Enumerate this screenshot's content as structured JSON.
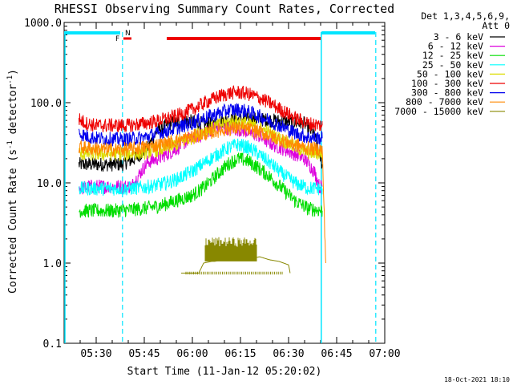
{
  "chart_data": {
    "type": "line",
    "title": "RHESSI Observing Summary Count Rates, Corrected",
    "xlabel": "Start Time (11-Jan-12 05:20:02)",
    "ylabel_main": "Corrected Count Rate (s",
    "ylabel_sup1": "-1",
    "ylabel_mid": " detector",
    "ylabel_sup2": "-1",
    "ylabel_end": ")",
    "yscale": "log",
    "ylim": [
      0.1,
      1000
    ],
    "xlim_min": [
      20,
      120
    ],
    "x_ticks": [
      {
        "min": 30,
        "label": "05:30"
      },
      {
        "min": 45,
        "label": "05:45"
      },
      {
        "min": 60,
        "label": "06:00"
      },
      {
        "min": 75,
        "label": "06:15"
      },
      {
        "min": 90,
        "label": "06:30"
      },
      {
        "min": 105,
        "label": "06:45"
      },
      {
        "min": 120,
        "label": "07:00"
      }
    ],
    "y_ticks": [
      {
        "value": 1000,
        "label": "1000.0"
      },
      {
        "value": 100,
        "label": "100.0"
      },
      {
        "value": 10,
        "label": "10.0"
      },
      {
        "value": 1,
        "label": "1.0"
      },
      {
        "value": 0.1,
        "label": "0.1"
      }
    ],
    "legend_header": [
      "Det 1,3,4,5,6,9,",
      "Att 0"
    ],
    "series": [
      {
        "name": "3 - 6 keV",
        "color": "#000000",
        "points": [
          [
            24.6,
            17
          ],
          [
            29,
            17
          ],
          [
            35,
            17
          ],
          [
            38,
            17
          ],
          [
            42,
            20
          ],
          [
            46,
            27
          ],
          [
            49,
            45
          ],
          [
            53,
            55
          ],
          [
            58,
            60
          ],
          [
            63,
            55
          ],
          [
            67,
            55
          ],
          [
            70,
            60
          ],
          [
            75,
            62
          ],
          [
            80,
            62
          ],
          [
            85,
            60
          ],
          [
            90,
            58
          ],
          [
            95,
            55
          ],
          [
            98,
            40
          ],
          [
            100.5,
            17
          ]
        ]
      },
      {
        "name": "6 - 12 keV",
        "color": "#dd00dd",
        "points": [
          [
            24.6,
            8.5
          ],
          [
            28,
            9
          ],
          [
            33,
            9
          ],
          [
            38,
            9
          ],
          [
            41,
            9
          ],
          [
            43,
            12
          ],
          [
            46,
            18
          ],
          [
            49,
            20
          ],
          [
            54,
            25
          ],
          [
            59,
            35
          ],
          [
            63,
            40
          ],
          [
            67,
            50
          ],
          [
            71,
            48
          ],
          [
            75,
            46
          ],
          [
            80,
            40
          ],
          [
            85,
            30
          ],
          [
            90,
            25
          ],
          [
            95,
            20
          ],
          [
            98,
            14
          ],
          [
            99.6,
            9
          ],
          [
            100.5,
            9
          ]
        ]
      },
      {
        "name": "12 - 25 keV",
        "color": "#00dd00",
        "points": [
          [
            24.6,
            4.5
          ],
          [
            30,
            4.5
          ],
          [
            35,
            4.5
          ],
          [
            40,
            4.6
          ],
          [
            45,
            4.8
          ],
          [
            50,
            5.2
          ],
          [
            55,
            6
          ],
          [
            60,
            7
          ],
          [
            64,
            9
          ],
          [
            68,
            13
          ],
          [
            71,
            17
          ],
          [
            74,
            20
          ],
          [
            77,
            19
          ],
          [
            80,
            16
          ],
          [
            84,
            12
          ],
          [
            88,
            8.5
          ],
          [
            92,
            6
          ],
          [
            96,
            4.8
          ],
          [
            100.5,
            4.5
          ]
        ]
      },
      {
        "name": "25 - 50 keV",
        "color": "#00ffff",
        "points": [
          [
            24.6,
            8.5
          ],
          [
            30,
            8.5
          ],
          [
            35,
            8.5
          ],
          [
            40,
            8.5
          ],
          [
            45,
            8.8
          ],
          [
            50,
            9.5
          ],
          [
            55,
            11
          ],
          [
            60,
            14
          ],
          [
            64,
            18
          ],
          [
            68,
            23
          ],
          [
            71,
            27
          ],
          [
            74,
            30
          ],
          [
            77,
            28
          ],
          [
            80,
            24
          ],
          [
            84,
            18
          ],
          [
            88,
            13
          ],
          [
            92,
            10
          ],
          [
            96,
            8.6
          ],
          [
            100.5,
            8.5
          ]
        ]
      },
      {
        "name": "50 - 100 keV",
        "color": "#dddd00",
        "points": [
          [
            24.6,
            23
          ],
          [
            30,
            23
          ],
          [
            35,
            23
          ],
          [
            40,
            23
          ],
          [
            45,
            24
          ],
          [
            50,
            26
          ],
          [
            55,
            30
          ],
          [
            60,
            37
          ],
          [
            64,
            45
          ],
          [
            68,
            52
          ],
          [
            71,
            57
          ],
          [
            74,
            58
          ],
          [
            77,
            55
          ],
          [
            80,
            50
          ],
          [
            84,
            42
          ],
          [
            88,
            34
          ],
          [
            92,
            28
          ],
          [
            96,
            24
          ],
          [
            100.5,
            23
          ]
        ]
      },
      {
        "name": "100 - 300 keV",
        "color": "#ee0000",
        "points": [
          [
            24.6,
            62
          ],
          [
            27,
            55
          ],
          [
            30,
            52
          ],
          [
            35,
            52
          ],
          [
            40,
            52
          ],
          [
            45,
            55
          ],
          [
            50,
            60
          ],
          [
            55,
            68
          ],
          [
            60,
            82
          ],
          [
            64,
            100
          ],
          [
            68,
            118
          ],
          [
            71,
            130
          ],
          [
            74,
            135
          ],
          [
            77,
            130
          ],
          [
            80,
            118
          ],
          [
            84,
            100
          ],
          [
            88,
            80
          ],
          [
            92,
            64
          ],
          [
            96,
            55
          ],
          [
            100.5,
            52
          ]
        ]
      },
      {
        "name": "300 - 800 keV",
        "color": "#0000ee",
        "points": [
          [
            24.6,
            42
          ],
          [
            27,
            38
          ],
          [
            30,
            36
          ],
          [
            35,
            35
          ],
          [
            40,
            35
          ],
          [
            45,
            37
          ],
          [
            50,
            42
          ],
          [
            55,
            48
          ],
          [
            60,
            56
          ],
          [
            64,
            65
          ],
          [
            68,
            73
          ],
          [
            71,
            80
          ],
          [
            74,
            82
          ],
          [
            77,
            78
          ],
          [
            80,
            70
          ],
          [
            84,
            60
          ],
          [
            88,
            50
          ],
          [
            92,
            42
          ],
          [
            96,
            37
          ],
          [
            100.5,
            36
          ]
        ]
      },
      {
        "name": "800 - 7000 keV",
        "color": "#ff8800",
        "points": [
          [
            24.6,
            28
          ],
          [
            28,
            27
          ],
          [
            33,
            26
          ],
          [
            38,
            26
          ],
          [
            43,
            27
          ],
          [
            48,
            29
          ],
          [
            53,
            32
          ],
          [
            58,
            36
          ],
          [
            63,
            40
          ],
          [
            67,
            44
          ],
          [
            71,
            47
          ],
          [
            74,
            48
          ],
          [
            77,
            47
          ],
          [
            80,
            44
          ],
          [
            84,
            39
          ],
          [
            88,
            34
          ],
          [
            92,
            30
          ],
          [
            96,
            27
          ],
          [
            100.5,
            26
          ],
          [
            101.6,
            1
          ]
        ]
      },
      {
        "name": "7000 - 15000 keV",
        "color": "#888800",
        "points": [
          [
            56.5,
            0.75
          ],
          [
            58,
            0.75
          ],
          [
            62,
            0.75
          ],
          [
            63.5,
            1.0
          ],
          [
            66,
            1.05
          ],
          [
            67,
            1.05
          ],
          [
            69,
            1.1
          ],
          [
            73,
            1.1
          ],
          [
            79,
            1.15
          ],
          [
            81,
            1.2
          ],
          [
            84,
            1.1
          ],
          [
            87,
            1.05
          ],
          [
            90,
            0.95
          ],
          [
            90.5,
            0.75
          ]
        ]
      }
    ],
    "annotations": {
      "flag_left_label": "F",
      "flag_right_label": "N"
    }
  },
  "timestamp": "18-Oct-2021 18:10"
}
